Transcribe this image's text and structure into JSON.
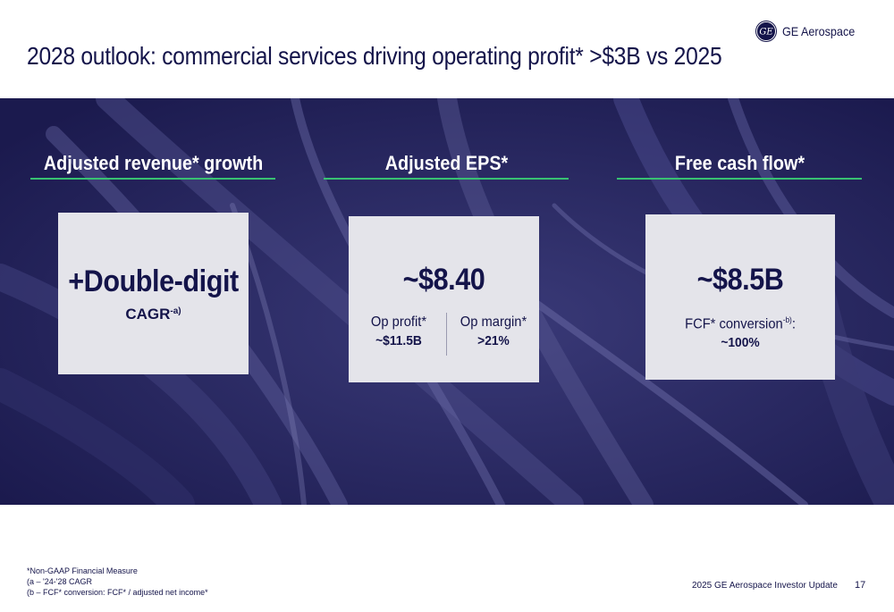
{
  "slide": {
    "title": "2028 outlook: commercial services driving operating profit* >$3B vs 2025",
    "brand_name": "GE Aerospace",
    "brand_mark_text": "GE"
  },
  "columns": [
    {
      "heading": "Adjusted revenue* growth",
      "headline": "+Double-digit",
      "subline": "CAGR",
      "subline_sup": "-a)"
    },
    {
      "heading": "Adjusted EPS*",
      "headline": "~$8.40",
      "metrics": [
        {
          "label": "Op profit*",
          "value": "~$11.5B"
        },
        {
          "label": "Op margin*",
          "value": ">21%"
        }
      ]
    },
    {
      "heading": "Free cash flow*",
      "headline": "~$8.5B",
      "detail_label": "FCF* conversion",
      "detail_sup": "-b)",
      "detail_suffix": ":",
      "detail_value": "~100%"
    }
  ],
  "footnotes": [
    "*Non-GAAP Financial Measure",
    "(a – '24-'28 CAGR",
    "(b – FCF* conversion: FCF* / adjusted net income*"
  ],
  "footer": {
    "event": "2025 GE Aerospace Investor Update",
    "page": "17"
  },
  "colors": {
    "navy": "#14144a",
    "band": "#1f1d55",
    "accent_green": "#38c172",
    "card": "#e4e4ea"
  }
}
